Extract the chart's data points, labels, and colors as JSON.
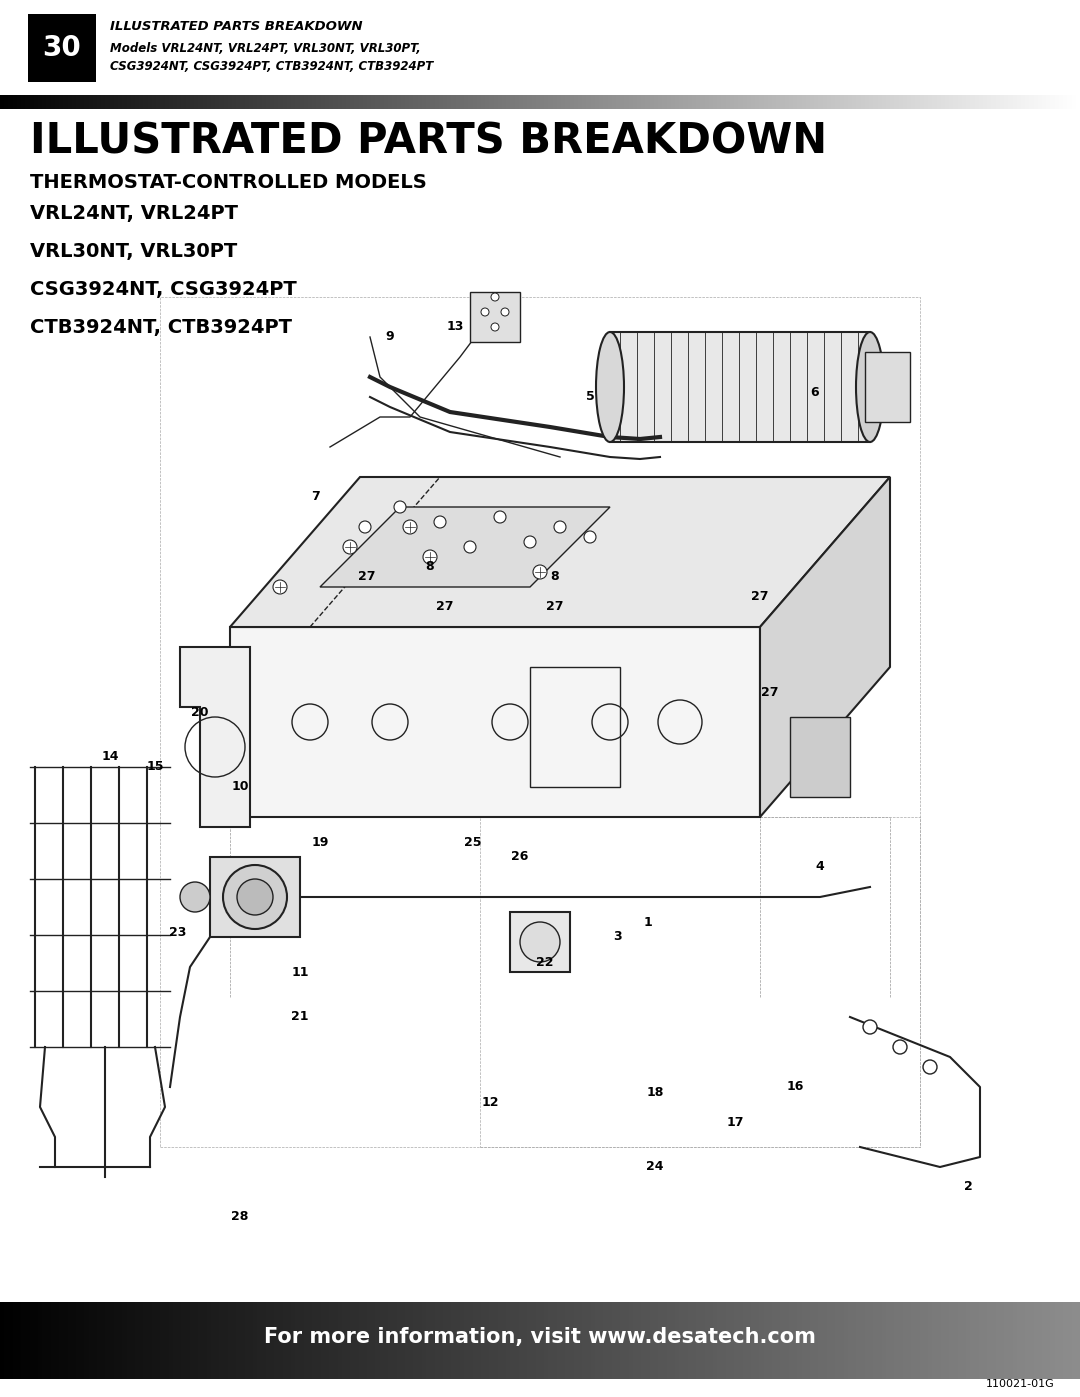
{
  "page_number": "30",
  "header_title": "ILLUSTRATED PARTS BREAKDOWN",
  "header_models_line1": "Models VRL24NT, VRL24PT, VRL30NT, VRL30PT,",
  "header_models_line2": "CSG3924NT, CSG3924PT, CTB3924NT, CTB3924PT",
  "main_title": "ILLUSTRATED PARTS BREAKDOWN",
  "subtitle": "THERMOSTAT-CONTROLLED MODELS",
  "model_lines": [
    "VRL24NT, VRL24PT",
    "VRL30NT, VRL30PT",
    "CSG3924NT, CSG3924PT",
    "CTB3924NT, CTB3924PT"
  ],
  "footer_text": "For more information, visit www.desatech.com",
  "footer_code": "110021-01G",
  "bg_color": "#ffffff",
  "lc": "#222222"
}
